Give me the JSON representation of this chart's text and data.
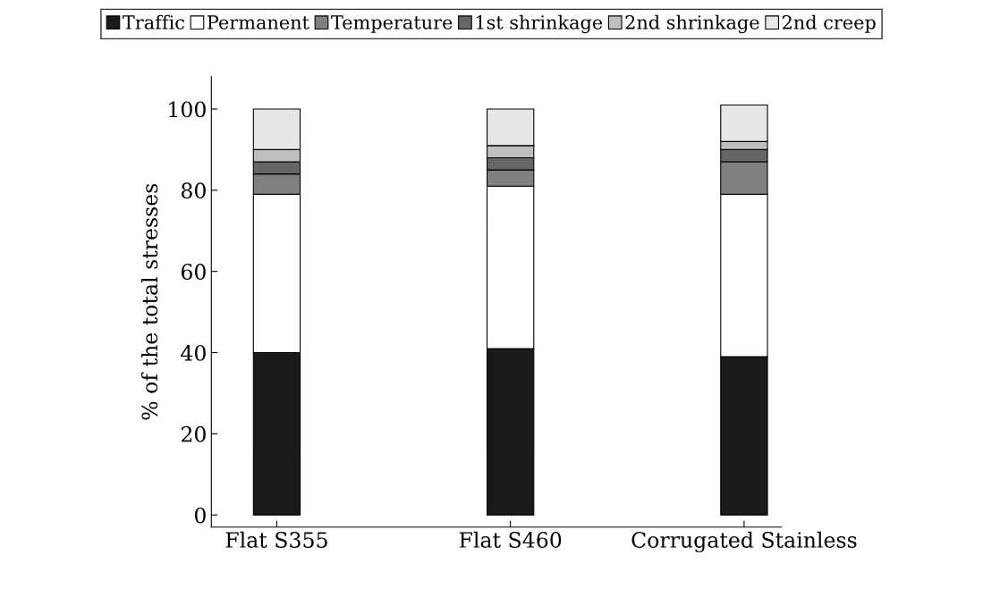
{
  "chart_data": {
    "type": "bar",
    "stacked": true,
    "ylabel": "% of the total stresses",
    "categories": [
      "Flat S355",
      "Flat S460",
      "Corrugated Stainless"
    ],
    "series": [
      {
        "name": "Traffic",
        "color": "#1a1a1a",
        "values": [
          40,
          41,
          39
        ]
      },
      {
        "name": "Permanent",
        "color": "#ffffff",
        "values": [
          39,
          40,
          40
        ]
      },
      {
        "name": "Temperature",
        "color": "#808080",
        "values": [
          5,
          4,
          8
        ]
      },
      {
        "name": "1st shrinkage",
        "color": "#666666",
        "values": [
          3,
          3,
          3
        ]
      },
      {
        "name": "2nd shrinkage",
        "color": "#bfbfbf",
        "values": [
          3,
          3,
          2
        ]
      },
      {
        "name": "2nd creep",
        "color": "#e6e6e6",
        "values": [
          10,
          9,
          9
        ]
      }
    ],
    "ylim": [
      -3,
      108
    ],
    "yticks": [
      0,
      20,
      40,
      60,
      80,
      100
    ],
    "legend": "top",
    "grid": false
  }
}
